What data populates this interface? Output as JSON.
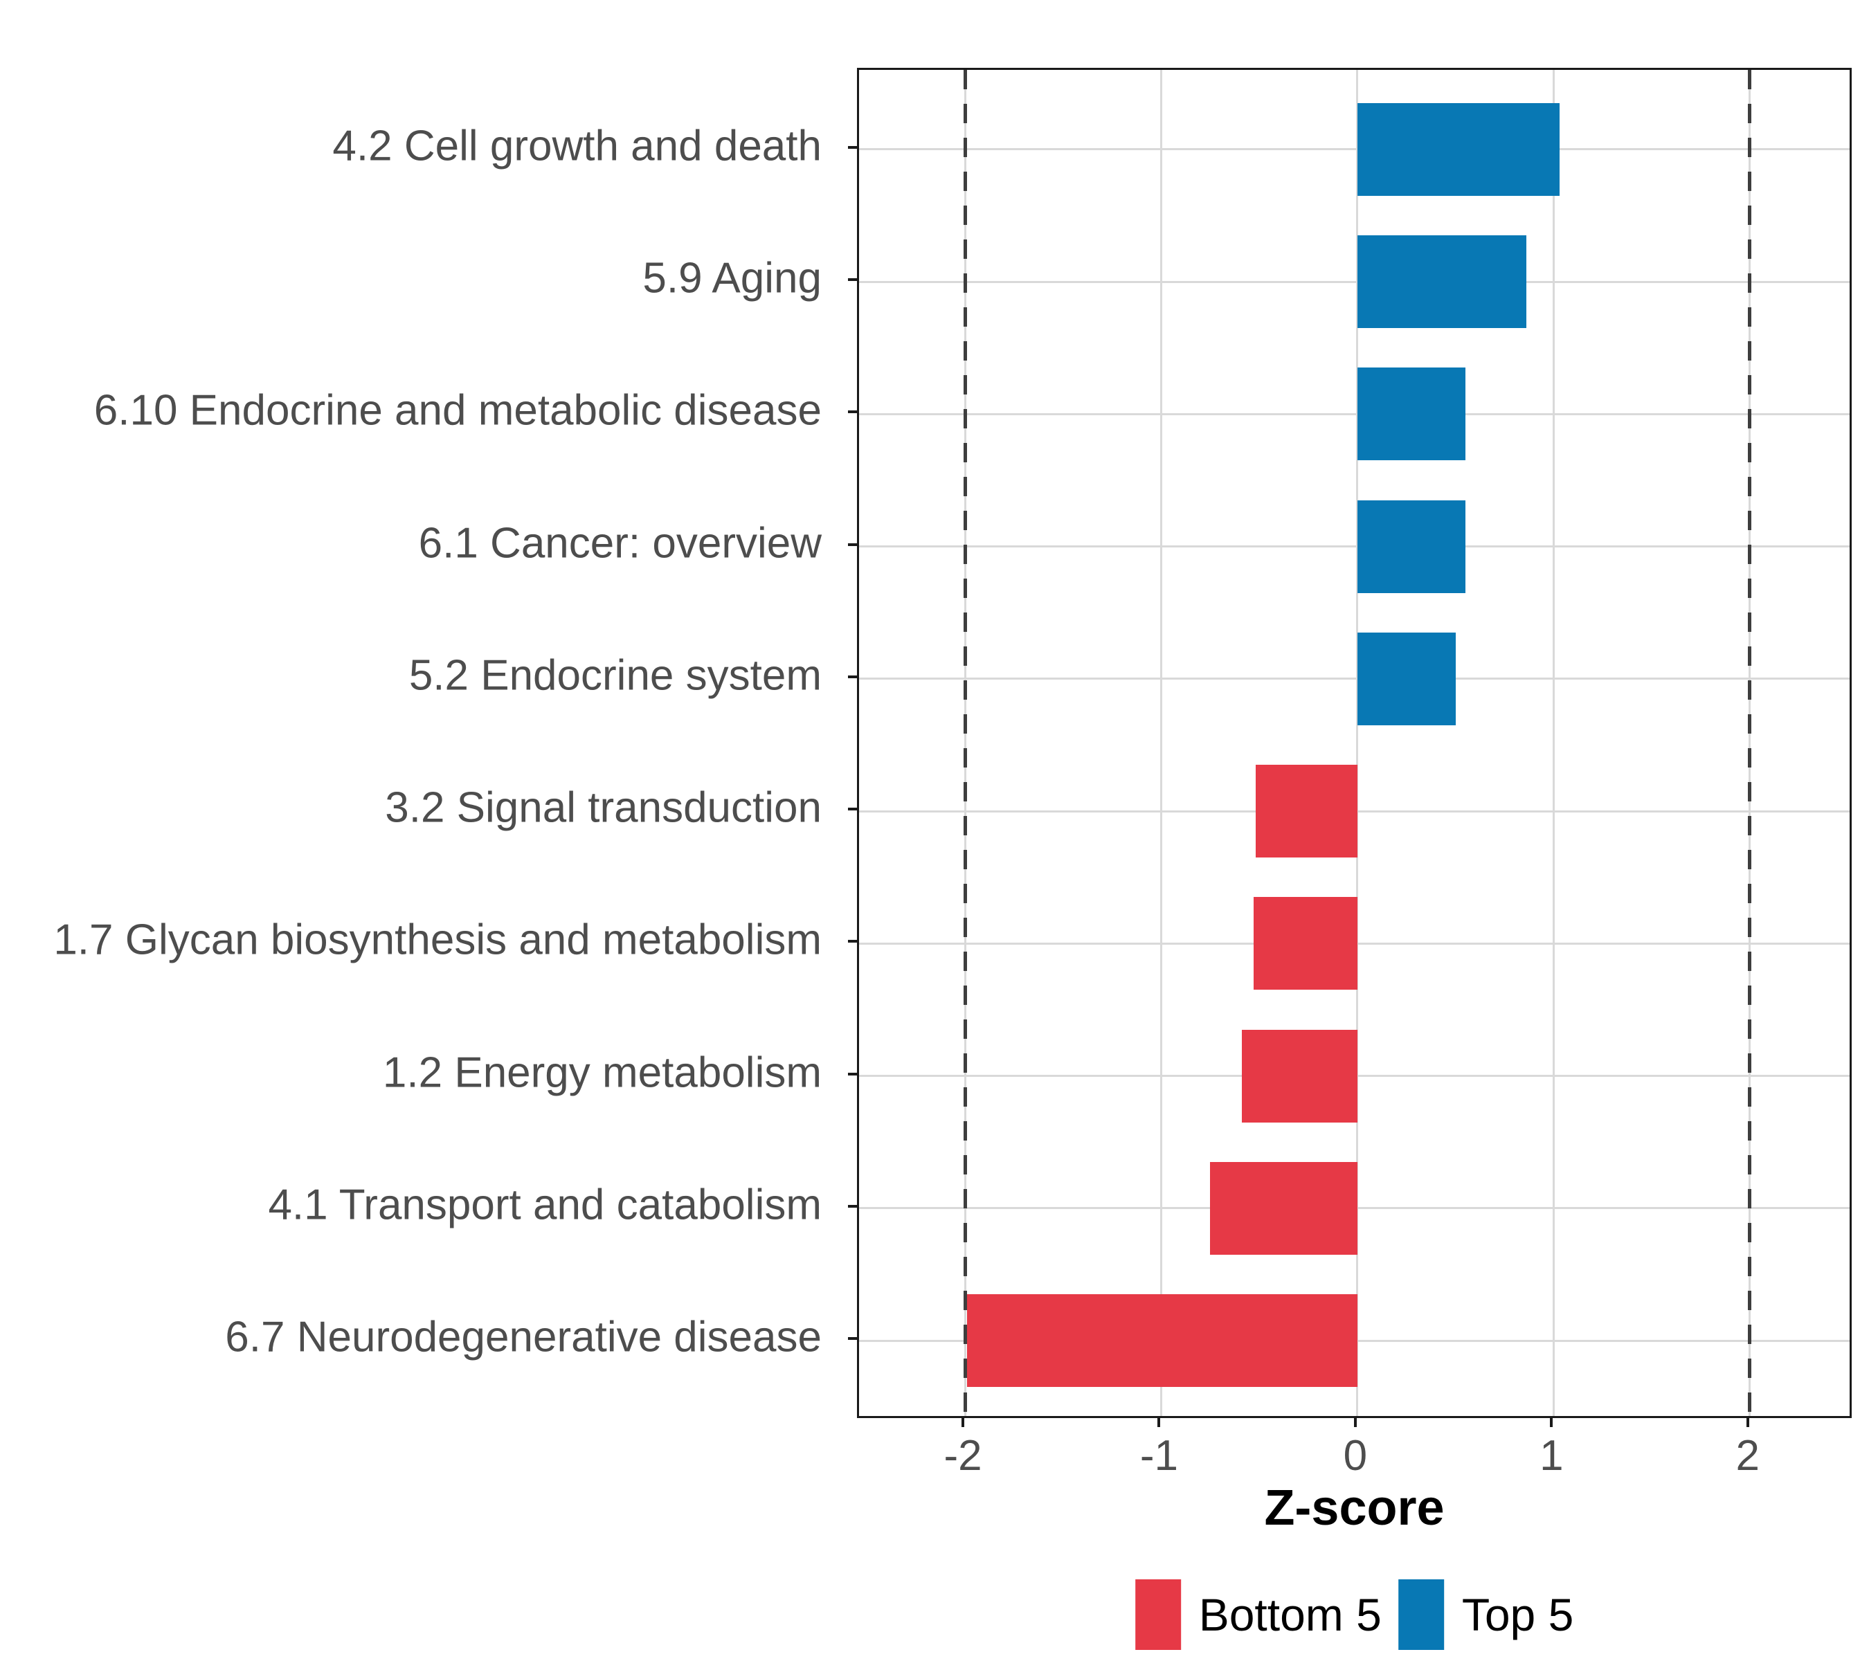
{
  "chart_data": {
    "type": "bar",
    "orientation": "horizontal",
    "title": "",
    "xlabel": "Z-score",
    "ylabel": "",
    "categories": [
      "4.2 Cell growth and death",
      "5.9 Aging",
      "6.10 Endocrine and metabolic disease",
      "6.1 Cancer: overview",
      "5.2 Endocrine system",
      "3.2 Signal transduction",
      "1.7 Glycan biosynthesis and metabolism",
      "1.2 Energy metabolism",
      "4.1 Transport and catabolism",
      "6.7 Neurodegenerative disease"
    ],
    "values": [
      1.03,
      0.86,
      0.55,
      0.55,
      0.5,
      -0.52,
      -0.53,
      -0.59,
      -0.75,
      -1.99
    ],
    "groups": [
      "Top 5",
      "Top 5",
      "Top 5",
      "Top 5",
      "Top 5",
      "Bottom 5",
      "Bottom 5",
      "Bottom 5",
      "Bottom 5",
      "Bottom 5"
    ],
    "group_colors": {
      "Top 5": "#0878B4",
      "Bottom 5": "#E63946"
    },
    "x_ticks": [
      -2,
      -1,
      0,
      1,
      2
    ],
    "xlim": [
      -2.54,
      2.53
    ],
    "reference_lines": [
      {
        "x": -2,
        "style": "dashed"
      },
      {
        "x": 2,
        "style": "dashed"
      }
    ],
    "grid": {
      "major_x": true,
      "major_y": true
    },
    "legend": {
      "position": "bottom",
      "entries": [
        {
          "label": "Bottom 5",
          "color": "#E63946"
        },
        {
          "label": "Top 5",
          "color": "#0878B4"
        }
      ]
    }
  },
  "styles": {
    "background": "#FFFFFF",
    "grid_color": "#D9D9D9",
    "reference_line_color": "#3E3E3E",
    "panel_border_color": "#1A1A1A",
    "axis_text_color": "#4D4D4D",
    "title_text_color": "#000000"
  }
}
